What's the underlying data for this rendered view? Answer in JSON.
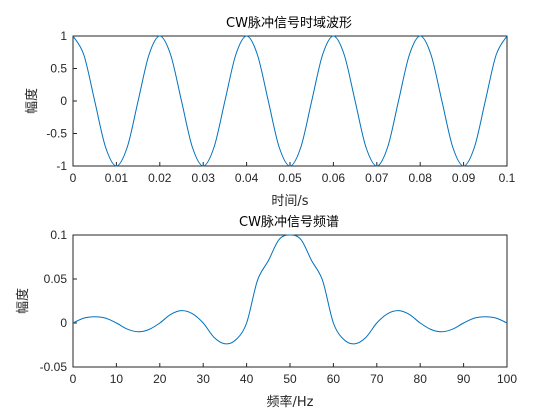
{
  "chart_data": [
    {
      "type": "line",
      "title": "CW脉冲信号时域波形",
      "xlabel": "时间/s",
      "ylabel": "幅度",
      "xlim": [
        0,
        0.1
      ],
      "ylim": [
        -1,
        1
      ],
      "xticks": [
        "0",
        "0.01",
        "0.02",
        "0.03",
        "0.04",
        "0.05",
        "0.06",
        "0.07",
        "0.08",
        "0.09",
        "0.1"
      ],
      "yticks": [
        "-1",
        "-0.5",
        "0",
        "0.5",
        "1"
      ],
      "grid": false,
      "series": [
        {
          "color": "#0072bd",
          "x": [
            0,
            0.0025,
            0.005,
            0.0075,
            0.01,
            0.0125,
            0.015,
            0.0175,
            0.02,
            0.0225,
            0.025,
            0.0275,
            0.03,
            0.0325,
            0.035,
            0.0375,
            0.04,
            0.0425,
            0.045,
            0.0475,
            0.05,
            0.0525,
            0.055,
            0.0575,
            0.06,
            0.0625,
            0.065,
            0.0675,
            0.07,
            0.0725,
            0.075,
            0.0775,
            0.08,
            0.0825,
            0.085,
            0.0875,
            0.09,
            0.0925,
            0.095,
            0.0975,
            0.1
          ],
          "y": [
            1,
            0.71,
            0,
            -0.71,
            -1,
            -0.71,
            0,
            0.71,
            1,
            0.71,
            0,
            -0.71,
            -1,
            -0.71,
            0,
            0.71,
            1,
            0.71,
            0,
            -0.71,
            -1,
            -0.71,
            0,
            0.71,
            1,
            0.71,
            0,
            -0.71,
            -1,
            -0.71,
            0,
            0.71,
            1,
            0.71,
            0,
            -0.71,
            -1,
            -0.71,
            0,
            0.71,
            1
          ]
        }
      ]
    },
    {
      "type": "line",
      "title": "CW脉冲信号频谱",
      "xlabel": "频率/Hz",
      "ylabel": "幅度",
      "xlim": [
        0,
        100
      ],
      "ylim": [
        -0.05,
        0.1
      ],
      "xticks": [
        "0",
        "10",
        "20",
        "30",
        "40",
        "50",
        "60",
        "70",
        "80",
        "90",
        "100"
      ],
      "yticks": [
        "-0.05",
        "0",
        "0.05",
        "0.1"
      ],
      "grid": false,
      "series": [
        {
          "color": "#0072bd",
          "x": [
            0,
            2.5,
            5,
            7.5,
            10,
            12.5,
            15,
            17.5,
            20,
            22.5,
            25,
            27.5,
            30,
            32.5,
            35,
            37.5,
            40,
            42.5,
            45,
            47.5,
            50,
            52.5,
            55,
            57.5,
            60,
            62.5,
            65,
            67.5,
            70,
            72.5,
            75,
            77.5,
            80,
            82.5,
            85,
            87.5,
            90,
            92.5,
            95,
            97.5,
            100
          ],
          "y": [
            0,
            0.0055,
            0.0071,
            0.0055,
            0,
            -0.0069,
            -0.01,
            -0.0074,
            0,
            0.0097,
            0.014,
            0.0106,
            0,
            -0.0163,
            -0.0236,
            -0.0192,
            0,
            0.0484,
            0.0707,
            0.0949,
            0.1,
            0.0949,
            0.0707,
            0.0484,
            0,
            -0.0192,
            -0.0236,
            -0.0163,
            0,
            0.0106,
            0.014,
            0.0097,
            0,
            -0.0074,
            -0.01,
            -0.0069,
            0,
            0.0055,
            0.0071,
            0.0055,
            0
          ]
        }
      ]
    }
  ]
}
